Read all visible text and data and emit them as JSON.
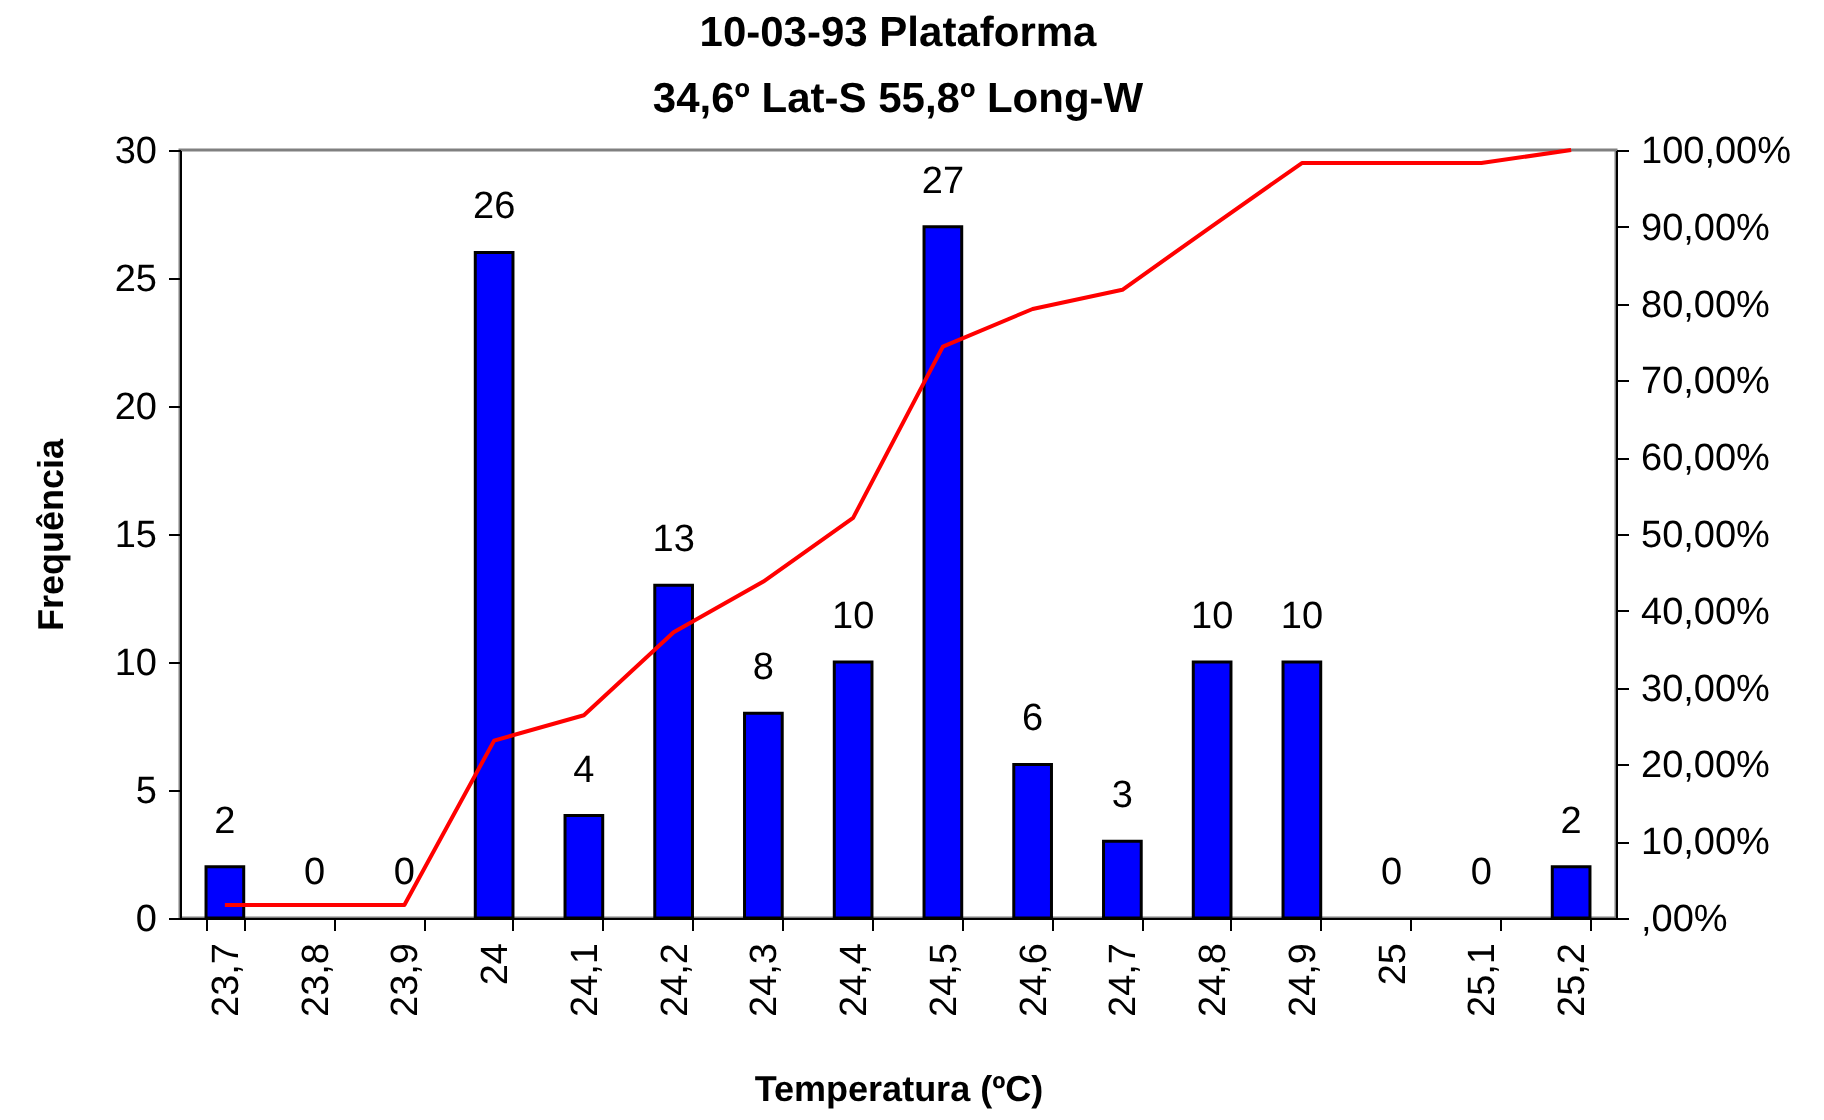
{
  "chart_data": {
    "type": "bar",
    "title": "10-03-93 Plataforma",
    "subtitle": "34,6º Lat-S 55,8º Long-W",
    "xlabel": "Temperatura (ºC)",
    "ylabel": "Frequência",
    "categories": [
      "23,7",
      "23,8",
      "23,9",
      "24",
      "24,1",
      "24,2",
      "24,3",
      "24,4",
      "24,5",
      "24,6",
      "24,7",
      "24,8",
      "24,9",
      "25",
      "25,1",
      "25,2"
    ],
    "series": [
      {
        "color": "#0000ff",
        "values": [
          2,
          0,
          0,
          26,
          4,
          13,
          8,
          10,
          27,
          6,
          3,
          10,
          10,
          0,
          0,
          2
        ],
        "value_labels": [
          "2",
          "0",
          "0",
          "26",
          "4",
          "13",
          "8",
          "10",
          "27",
          "6",
          "3",
          "10",
          "10",
          "0",
          "0",
          "2"
        ]
      },
      {
        "type": "line",
        "axis": "y2",
        "color": "#ff0000",
        "values": [
          1.7,
          1.7,
          1.7,
          23.1,
          26.4,
          37.2,
          43.8,
          52.1,
          74.4,
          79.3,
          81.8,
          90.1,
          98.3,
          98.3,
          98.3,
          100
        ]
      }
    ],
    "ylim": [
      0,
      30
    ],
    "yticks": [
      0,
      5,
      10,
      15,
      20,
      25,
      30
    ],
    "y2lim": [
      0,
      100
    ],
    "y2ticks": [
      {
        "value": 0,
        "label": ",00%"
      },
      {
        "value": 10,
        "label": "10,00%"
      },
      {
        "value": 20,
        "label": "20,00%"
      },
      {
        "value": 30,
        "label": "30,00%"
      },
      {
        "value": 40,
        "label": "40,00%"
      },
      {
        "value": 50,
        "label": "50,00%"
      },
      {
        "value": 60,
        "label": "60,00%"
      },
      {
        "value": 70,
        "label": "70,00%"
      },
      {
        "value": 80,
        "label": "80,00%"
      },
      {
        "value": 90,
        "label": "90,00%"
      },
      {
        "value": 100,
        "label": "100,00%"
      }
    ]
  }
}
